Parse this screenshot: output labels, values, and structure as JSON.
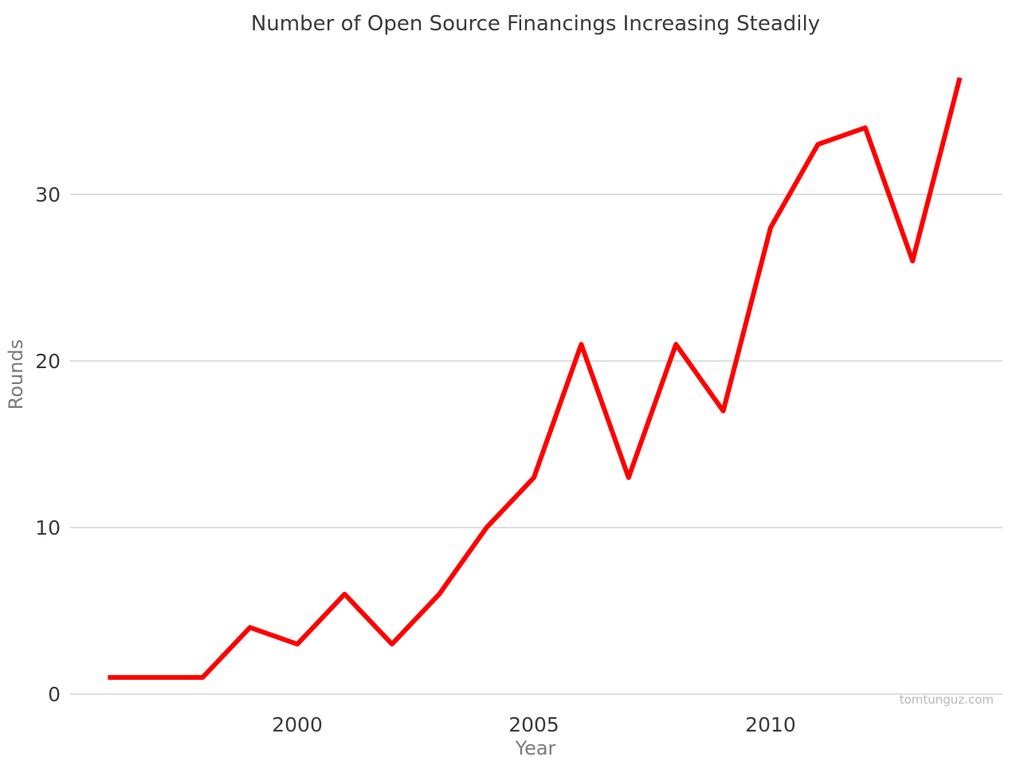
{
  "chart_data": {
    "type": "line",
    "title": "Number of Open Source Financings Increasing Steadily",
    "xlabel": "Year",
    "ylabel": "Rounds",
    "watermark": "tomtunguz.com",
    "x": [
      1996,
      1997,
      1998,
      1999,
      2000,
      2001,
      2002,
      2003,
      2004,
      2005,
      2006,
      2007,
      2008,
      2009,
      2010,
      2011,
      2012,
      2013,
      2014
    ],
    "series": [
      {
        "name": "Rounds",
        "color": "#ff0000",
        "values": [
          1,
          1,
          1,
          4,
          3,
          6,
          3,
          6,
          10,
          13,
          21,
          13,
          21,
          17,
          28,
          33,
          34,
          26,
          37
        ]
      }
    ],
    "xticks": [
      2000,
      2005,
      2010
    ],
    "xtick_labels": [
      "2000",
      "2005",
      "2010"
    ],
    "yticks": [
      0,
      10,
      20,
      30
    ],
    "ytick_labels": [
      "0",
      "10",
      "20",
      "30"
    ],
    "xlim": [
      1995.2,
      2014.9
    ],
    "ylim": [
      0,
      38.8
    ],
    "grid": true,
    "legend": "none"
  }
}
